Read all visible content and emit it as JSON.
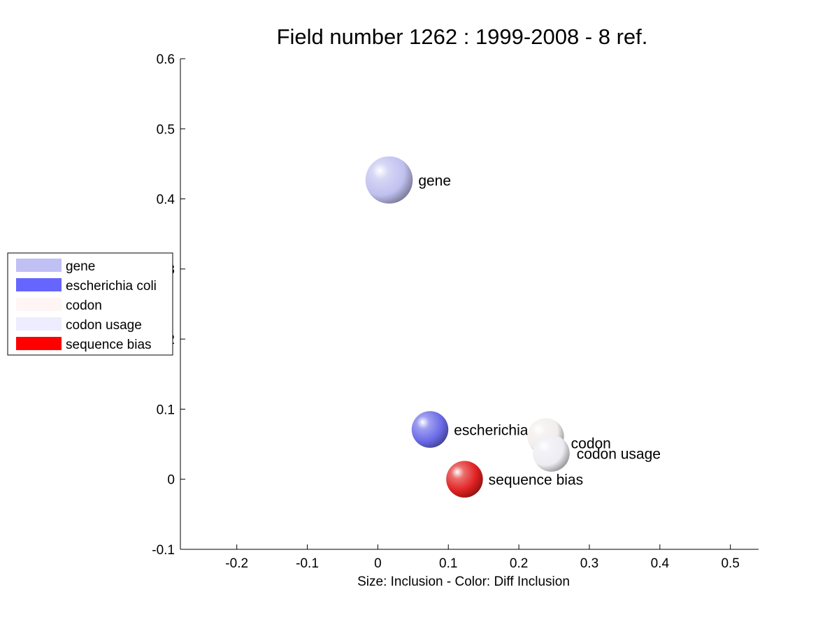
{
  "chart_data": {
    "type": "scatter",
    "title": "Field number 1262 : 1999-2008  - 8 ref.",
    "xlabel": "Size: Inclusion - Color: Diff Inclusion",
    "ylabel": "",
    "xlim": [
      -0.28,
      0.54
    ],
    "ylim": [
      -0.1,
      0.6
    ],
    "xticks": [
      -0.2,
      -0.1,
      0,
      0.1,
      0.2,
      0.3,
      0.4,
      0.5
    ],
    "xtick_labels": [
      "-0.2",
      "-0.1",
      "0",
      "0.1",
      "0.2",
      "0.3",
      "0.4",
      "0.5"
    ],
    "yticks": [
      -0.1,
      0,
      0.1,
      0.2,
      0.3,
      0.4,
      0.5,
      0.6
    ],
    "ytick_labels": [
      "-0.1",
      "0",
      "0.1",
      "0.2",
      "0.3",
      "0.4",
      "0.5",
      "0.6"
    ],
    "grid": false,
    "legend_position": "left",
    "points": [
      {
        "label": "gene",
        "x": 0.016,
        "y": 0.427,
        "size": 0.067,
        "color": "#c0c0f0"
      },
      {
        "label": "escherichia coli",
        "x": 0.074,
        "y": 0.071,
        "size": 0.052,
        "color": "#6a6ae8"
      },
      {
        "label": "codon",
        "x": 0.238,
        "y": 0.061,
        "size": 0.052,
        "color": "#f2eded"
      },
      {
        "label": "codon usage",
        "x": 0.246,
        "y": 0.037,
        "size": 0.052,
        "color": "#ececf2"
      },
      {
        "label": "sequence bias",
        "x": 0.123,
        "y": 0.0,
        "size": 0.052,
        "color": "#e02020"
      }
    ],
    "legend": [
      {
        "label": "gene",
        "color": "#c0c0f5"
      },
      {
        "label": "escherichia coli",
        "color": "#6666ff"
      },
      {
        "label": "codon",
        "color": "#fff5f5"
      },
      {
        "label": "codon usage",
        "color": "#ededff"
      },
      {
        "label": "sequence bias",
        "color": "#ff0000"
      }
    ]
  }
}
